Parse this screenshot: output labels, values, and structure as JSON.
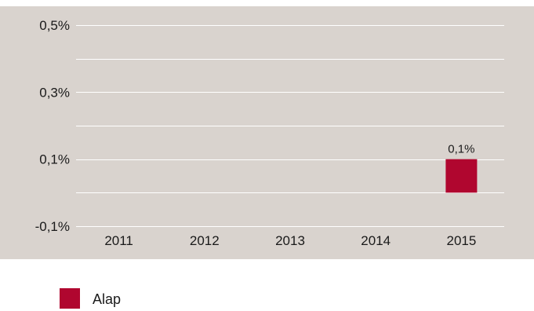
{
  "chart_data": {
    "type": "bar",
    "categories": [
      "2011",
      "2012",
      "2013",
      "2014",
      "2015"
    ],
    "series": [
      {
        "name": "Alap",
        "values": [
          null,
          null,
          null,
          null,
          0.1
        ],
        "color": "#b0062f"
      }
    ],
    "data_labels": [
      "",
      "",
      "",
      "",
      "0,1%"
    ],
    "yticks": [
      {
        "value": 0.5,
        "label": "0,5%"
      },
      {
        "value": 0.3,
        "label": "0,3%"
      },
      {
        "value": 0.1,
        "label": "0,1%"
      },
      {
        "value": -0.1,
        "label": "-0,1%"
      }
    ],
    "ylim": [
      -0.1,
      0.5
    ],
    "grid": true,
    "legend_position": "bottom-left",
    "colors": {
      "plot_background": "#d9d3ce",
      "gridline": "#ffffff"
    }
  }
}
